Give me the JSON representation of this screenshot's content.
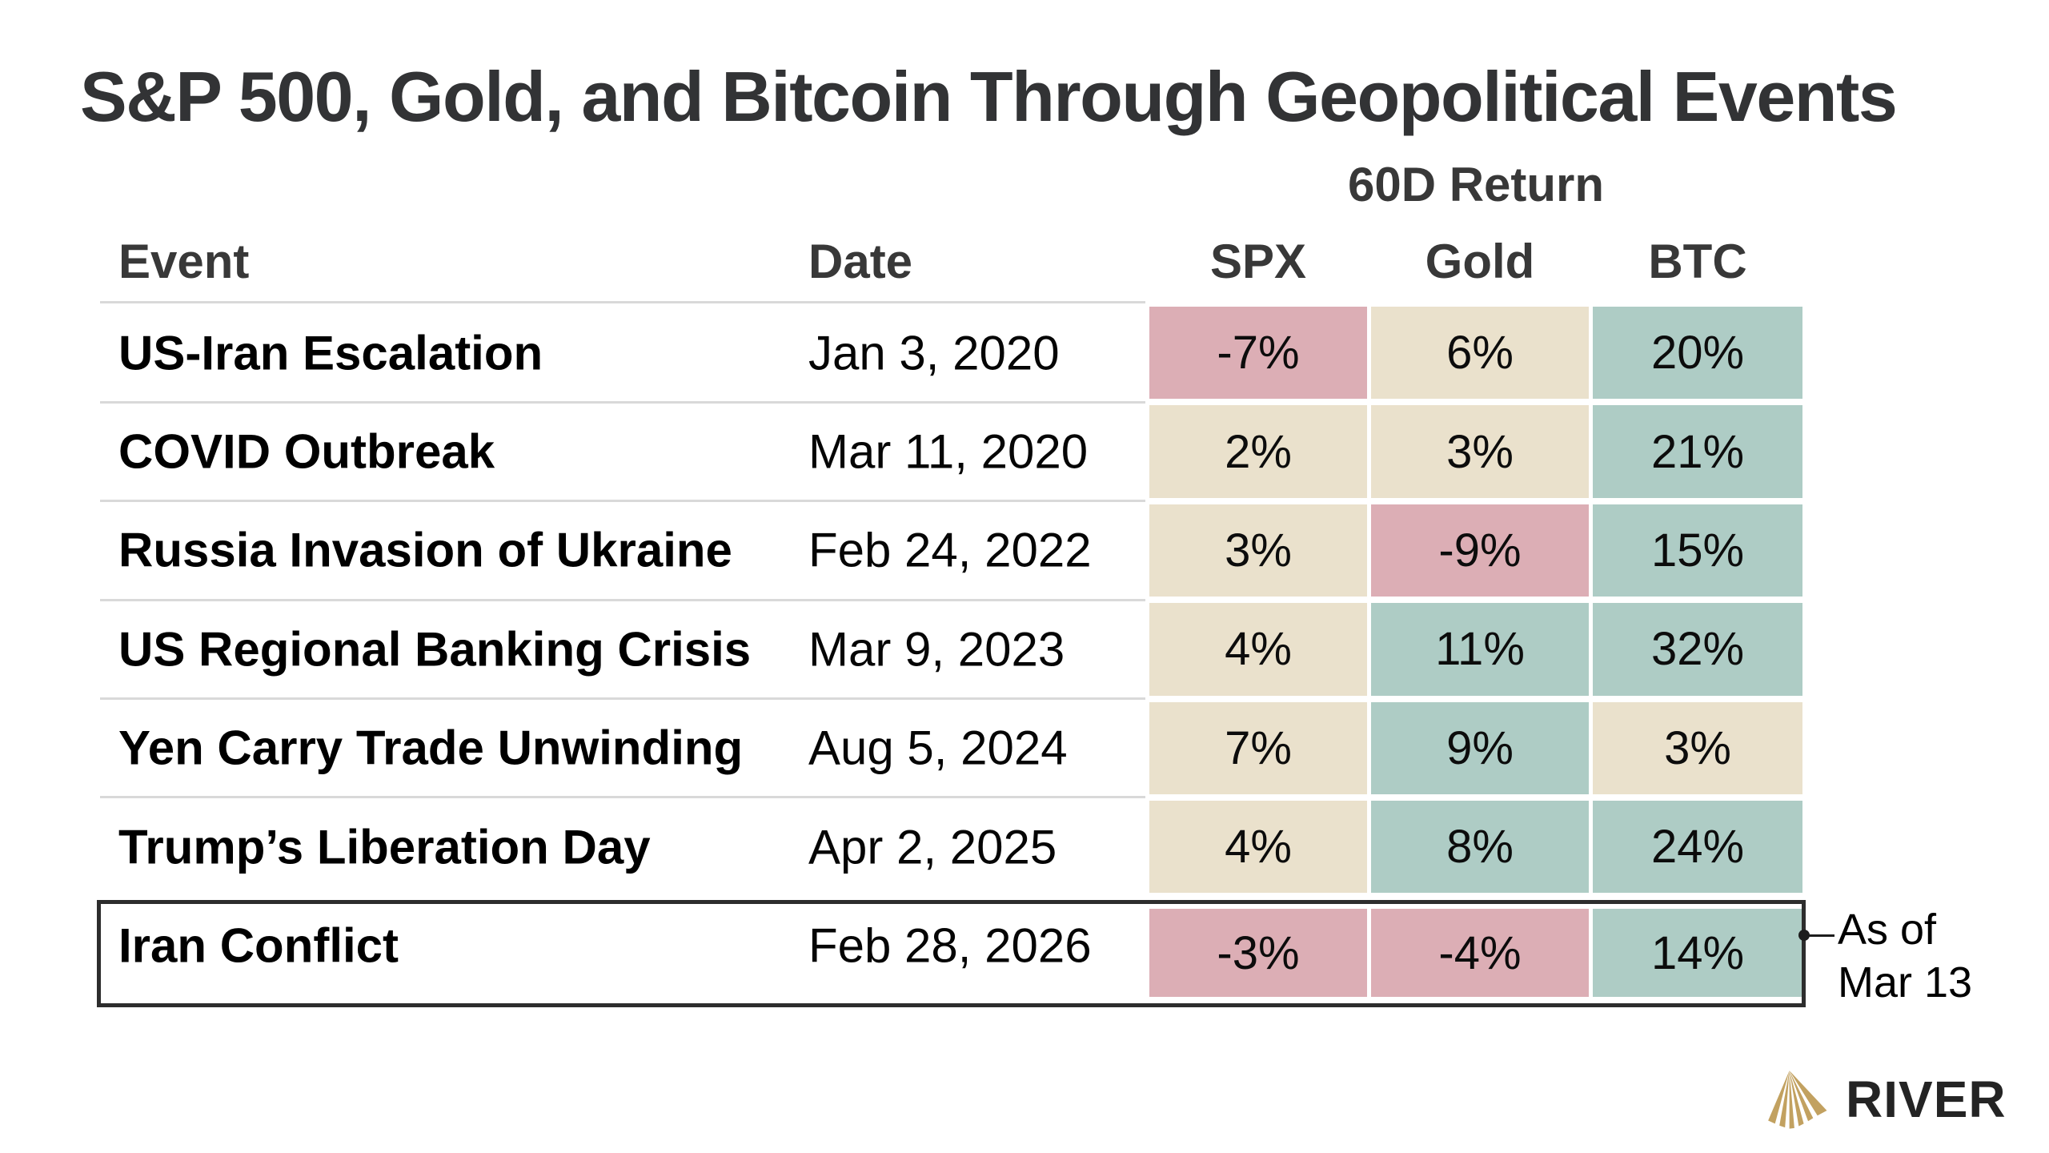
{
  "title": "S&P 500, Gold, and Bitcoin Through Geopolitical Events",
  "table": {
    "group_header": "60D Return",
    "columns": {
      "event": "Event",
      "date": "Date",
      "spx": "SPX",
      "gold": "Gold",
      "btc": "BTC"
    },
    "rows": [
      {
        "event": "US-Iran Escalation",
        "date": "Jan 3, 2020",
        "spx": "-7%",
        "spx_tone": "down",
        "gold": "6%",
        "gold_tone": "flat",
        "btc": "20%",
        "btc_tone": "up",
        "highlighted": false
      },
      {
        "event": "COVID Outbreak",
        "date": "Mar 11, 2020",
        "spx": "2%",
        "spx_tone": "flat",
        "gold": "3%",
        "gold_tone": "flat",
        "btc": "21%",
        "btc_tone": "up",
        "highlighted": false
      },
      {
        "event": "Russia Invasion of Ukraine",
        "date": "Feb 24, 2022",
        "spx": "3%",
        "spx_tone": "flat",
        "gold": "-9%",
        "gold_tone": "down",
        "btc": "15%",
        "btc_tone": "up",
        "highlighted": false
      },
      {
        "event": "US Regional Banking Crisis",
        "date": "Mar 9, 2023",
        "spx": "4%",
        "spx_tone": "flat",
        "gold": "11%",
        "gold_tone": "up",
        "btc": "32%",
        "btc_tone": "up",
        "highlighted": false
      },
      {
        "event": "Yen Carry Trade Unwinding",
        "date": "Aug 5, 2024",
        "spx": "7%",
        "spx_tone": "flat",
        "gold": "9%",
        "gold_tone": "up",
        "btc": "3%",
        "btc_tone": "flat",
        "highlighted": false
      },
      {
        "event": "Trump’s Liberation Day",
        "date": "Apr 2, 2025",
        "spx": "4%",
        "spx_tone": "flat",
        "gold": "8%",
        "gold_tone": "up",
        "btc": "24%",
        "btc_tone": "up",
        "highlighted": false
      },
      {
        "event": "Iran Conflict",
        "date": "Feb 28, 2026",
        "spx": "-3%",
        "spx_tone": "down",
        "gold": "-4%",
        "gold_tone": "down",
        "btc": "14%",
        "btc_tone": "up",
        "highlighted": true
      }
    ]
  },
  "annotation": {
    "line1": "As of",
    "line2": "Mar 13"
  },
  "logo": {
    "wordmark": "RIVER",
    "icon": "river-rays-icon"
  },
  "colors": {
    "up": "#AECCC5",
    "flat": "#EAE1CC",
    "down": "#DCAEB5",
    "divider": "#D9D9D9",
    "highlight_border": "#2D2D2D",
    "accent_gold": "#C2A160",
    "title_text": "#323335",
    "header_text": "#383838"
  },
  "chart_data": {
    "type": "table",
    "title": "S&P 500, Gold, and Bitcoin Through Geopolitical Events",
    "group_header": "60D Return",
    "columns": [
      "Event",
      "Date",
      "SPX",
      "Gold",
      "BTC"
    ],
    "rows": [
      [
        "US-Iran Escalation",
        "Jan 3, 2020",
        "-7%",
        "6%",
        "20%"
      ],
      [
        "COVID Outbreak",
        "Mar 11, 2020",
        "2%",
        "3%",
        "21%"
      ],
      [
        "Russia Invasion of Ukraine",
        "Feb 24, 2022",
        "3%",
        "-9%",
        "15%"
      ],
      [
        "US Regional Banking Crisis",
        "Mar 9, 2023",
        "4%",
        "11%",
        "32%"
      ],
      [
        "Yen Carry Trade Unwinding",
        "Aug 5, 2024",
        "7%",
        "9%",
        "3%"
      ],
      [
        "Trump’s Liberation Day",
        "Apr 2, 2025",
        "4%",
        "8%",
        "24%"
      ],
      [
        "Iran Conflict",
        "Feb 28, 2026",
        "-3%",
        "-4%",
        "14%"
      ]
    ],
    "values_numeric": {
      "spx": [
        -7,
        2,
        3,
        4,
        7,
        4,
        -3
      ],
      "gold": [
        6,
        3,
        -9,
        11,
        9,
        8,
        -4
      ],
      "btc": [
        20,
        21,
        15,
        32,
        3,
        24,
        14
      ]
    },
    "annotation": "As of Mar 13 (applies to highlighted Iran Conflict row)"
  }
}
